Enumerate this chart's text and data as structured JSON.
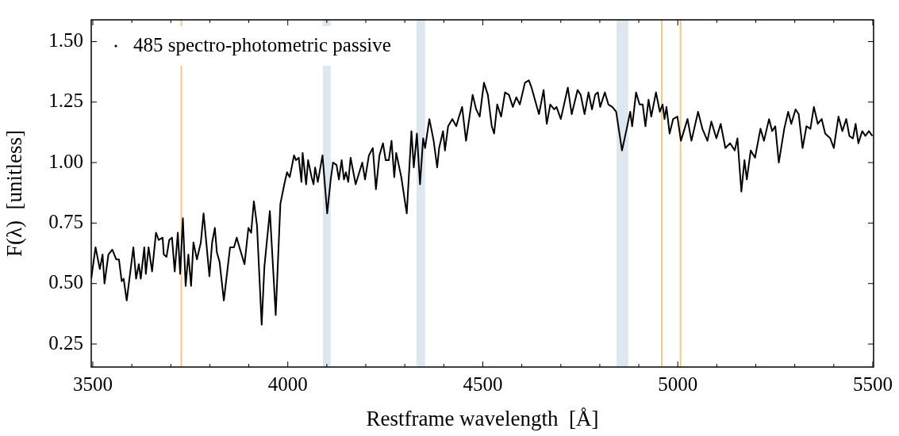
{
  "chart_data": {
    "type": "line",
    "xlabel": "Restframe wavelength  [Å]",
    "ylabel": "F(λ)  [unitless]",
    "xlim": [
      3496,
      5502
    ],
    "ylim": [
      0.155,
      1.59
    ],
    "xticks": [
      3500,
      {
        "value": 3600,
        "label": null
      },
      {
        "value": 3700,
        "label": null
      },
      {
        "value": 3800,
        "label": null
      },
      {
        "value": 3900,
        "label": null
      },
      4000,
      {
        "value": 4100,
        "label": null
      },
      {
        "value": 4200,
        "label": null
      },
      {
        "value": 4300,
        "label": null
      },
      {
        "value": 4400,
        "label": null
      },
      4500,
      {
        "value": 4600,
        "label": null
      },
      {
        "value": 4700,
        "label": null
      },
      {
        "value": 4800,
        "label": null
      },
      {
        "value": 4900,
        "label": null
      },
      5000,
      {
        "value": 5100,
        "label": null
      },
      {
        "value": 5200,
        "label": null
      },
      {
        "value": 5300,
        "label": null
      },
      {
        "value": 5400,
        "label": null
      },
      5500
    ],
    "yticks": [
      0.25,
      {
        "value": 0.5,
        "label": "0.50"
      },
      0.75,
      {
        "value": 1.0,
        "label": "1.00"
      },
      1.25,
      {
        "value": 1.5,
        "label": "1.50"
      }
    ],
    "grid": false,
    "legend": "top left",
    "ref_lines": [
      {
        "axis": "x",
        "value": 3727,
        "color": "#f0c987"
      },
      {
        "axis": "x",
        "value": 4959,
        "color": "#f0c987"
      },
      {
        "axis": "x",
        "value": 5007,
        "color": "#f0c987"
      }
    ],
    "bands": [
      {
        "axis": "x",
        "from": 4090,
        "to": 4110,
        "color": "#dde7f0"
      },
      {
        "axis": "x",
        "from": 4330,
        "to": 4352,
        "color": "#dde7f0"
      },
      {
        "axis": "x",
        "from": 4843,
        "to": 4873,
        "color": "#dde7f0"
      }
    ],
    "series": [
      {
        "name": "485 spectro-photometric passive",
        "color": "#000000",
        "x": [
          3496,
          3507,
          3518,
          3525,
          3530,
          3540,
          3550,
          3560,
          3567,
          3574,
          3579,
          3587,
          3604,
          3611,
          3618,
          3623,
          3632,
          3636,
          3643,
          3652,
          3662,
          3669,
          3679,
          3682,
          3689,
          3696,
          3703,
          3710,
          3718,
          3724,
          3731,
          3738,
          3745,
          3752,
          3758,
          3767,
          3777,
          3784,
          3791,
          3799,
          3806,
          3813,
          3818,
          3825,
          3836,
          3852,
          3862,
          3869,
          3876,
          3889,
          3899,
          3906,
          3913,
          3921,
          3933,
          3940,
          3954,
          3969,
          3981,
          3991,
          3998,
          4005,
          4016,
          4021,
          4028,
          4035,
          4038,
          4047,
          4052,
          4061,
          4066,
          4070,
          4077,
          4089,
          4101,
          4110,
          4116,
          4125,
          4131,
          4138,
          4144,
          4149,
          4155,
          4161,
          4174,
          4191,
          4198,
          4208,
          4218,
          4226,
          4235,
          4244,
          4251,
          4259,
          4266,
          4273,
          4278,
          4291,
          4305,
          4317,
          4323,
          4331,
          4339,
          4347,
          4352,
          4363,
          4374,
          4383,
          4388,
          4398,
          4403,
          4411,
          4422,
          4432,
          4439,
          4447,
          4457,
          4474,
          4483,
          4492,
          4503,
          4513,
          4523,
          4529,
          4537,
          4547,
          4557,
          4567,
          4577,
          4586,
          4595,
          4608,
          4618,
          4625,
          4644,
          4656,
          4664,
          4673,
          4683,
          4689,
          4700,
          4718,
          4728,
          4743,
          4751,
          4761,
          4771,
          4780,
          4788,
          4795,
          4801,
          4813,
          4822,
          4832,
          4842,
          4857,
          4869,
          4878,
          4883,
          4893,
          4902,
          4910,
          4917,
          4925,
          4932,
          4944,
          4954,
          4961,
          4966,
          4971,
          4979,
          4988,
          4999,
          5008,
          5025,
          5035,
          5052,
          5063,
          5076,
          5086,
          5099,
          5110,
          5122,
          5134,
          5146,
          5153,
          5163,
          5171,
          5177,
          5187,
          5198,
          5212,
          5221,
          5234,
          5242,
          5250,
          5259,
          5273,
          5283,
          5291,
          5302,
          5310,
          5320,
          5330,
          5340,
          5349,
          5359,
          5369,
          5378,
          5391,
          5400,
          5412,
          5422,
          5432,
          5440,
          5449,
          5456,
          5463,
          5473,
          5481,
          5490,
          5499
        ],
        "values": [
          0.52,
          0.65,
          0.56,
          0.62,
          0.5,
          0.62,
          0.64,
          0.6,
          0.6,
          0.51,
          0.52,
          0.43,
          0.65,
          0.52,
          0.58,
          0.52,
          0.65,
          0.54,
          0.65,
          0.55,
          0.71,
          0.68,
          0.69,
          0.62,
          0.61,
          0.68,
          0.69,
          0.55,
          0.71,
          0.54,
          0.77,
          0.49,
          0.62,
          0.49,
          0.67,
          0.6,
          0.67,
          0.79,
          0.67,
          0.53,
          0.67,
          0.73,
          0.63,
          0.59,
          0.43,
          0.65,
          0.65,
          0.69,
          0.65,
          0.58,
          0.73,
          0.71,
          0.84,
          0.74,
          0.33,
          0.57,
          0.8,
          0.37,
          0.83,
          0.91,
          0.96,
          0.94,
          1.03,
          1.01,
          1.02,
          0.92,
          1.04,
          0.91,
          1.01,
          0.94,
          0.91,
          0.98,
          0.92,
          1.03,
          0.79,
          0.93,
          1.0,
          0.99,
          0.93,
          1.01,
          0.93,
          0.96,
          0.92,
          1.02,
          0.91,
          1.0,
          0.93,
          1.03,
          1.06,
          0.89,
          1.03,
          1.08,
          1.01,
          1.01,
          1.09,
          0.94,
          1.04,
          0.94,
          0.79,
          1.13,
          0.98,
          1.12,
          0.91,
          1.1,
          1.06,
          1.18,
          1.09,
          0.98,
          1.06,
          1.13,
          1.05,
          1.15,
          1.18,
          1.15,
          1.19,
          1.23,
          1.09,
          1.28,
          1.22,
          1.19,
          1.33,
          1.28,
          1.15,
          1.12,
          1.24,
          1.19,
          1.29,
          1.28,
          1.23,
          1.27,
          1.24,
          1.33,
          1.34,
          1.31,
          1.2,
          1.3,
          1.16,
          1.24,
          1.22,
          1.23,
          1.18,
          1.31,
          1.2,
          1.3,
          1.28,
          1.2,
          1.29,
          1.22,
          1.28,
          1.29,
          1.23,
          1.29,
          1.24,
          1.23,
          1.21,
          1.05,
          1.14,
          1.21,
          1.15,
          1.29,
          1.24,
          1.24,
          1.15,
          1.26,
          1.19,
          1.29,
          1.21,
          1.24,
          1.18,
          1.23,
          1.12,
          1.18,
          1.19,
          1.09,
          1.18,
          1.09,
          1.21,
          1.14,
          1.09,
          1.17,
          1.1,
          1.16,
          1.06,
          1.08,
          1.05,
          1.1,
          0.88,
          1.01,
          0.93,
          1.05,
          1.02,
          1.14,
          1.09,
          1.18,
          1.13,
          1.15,
          1.0,
          1.14,
          1.21,
          1.16,
          1.22,
          1.2,
          1.06,
          1.15,
          1.14,
          1.23,
          1.16,
          1.18,
          1.12,
          1.1,
          1.06,
          1.19,
          1.13,
          1.18,
          1.11,
          1.1,
          1.16,
          1.08,
          1.13,
          1.11,
          1.13,
          1.11
        ]
      }
    ]
  }
}
